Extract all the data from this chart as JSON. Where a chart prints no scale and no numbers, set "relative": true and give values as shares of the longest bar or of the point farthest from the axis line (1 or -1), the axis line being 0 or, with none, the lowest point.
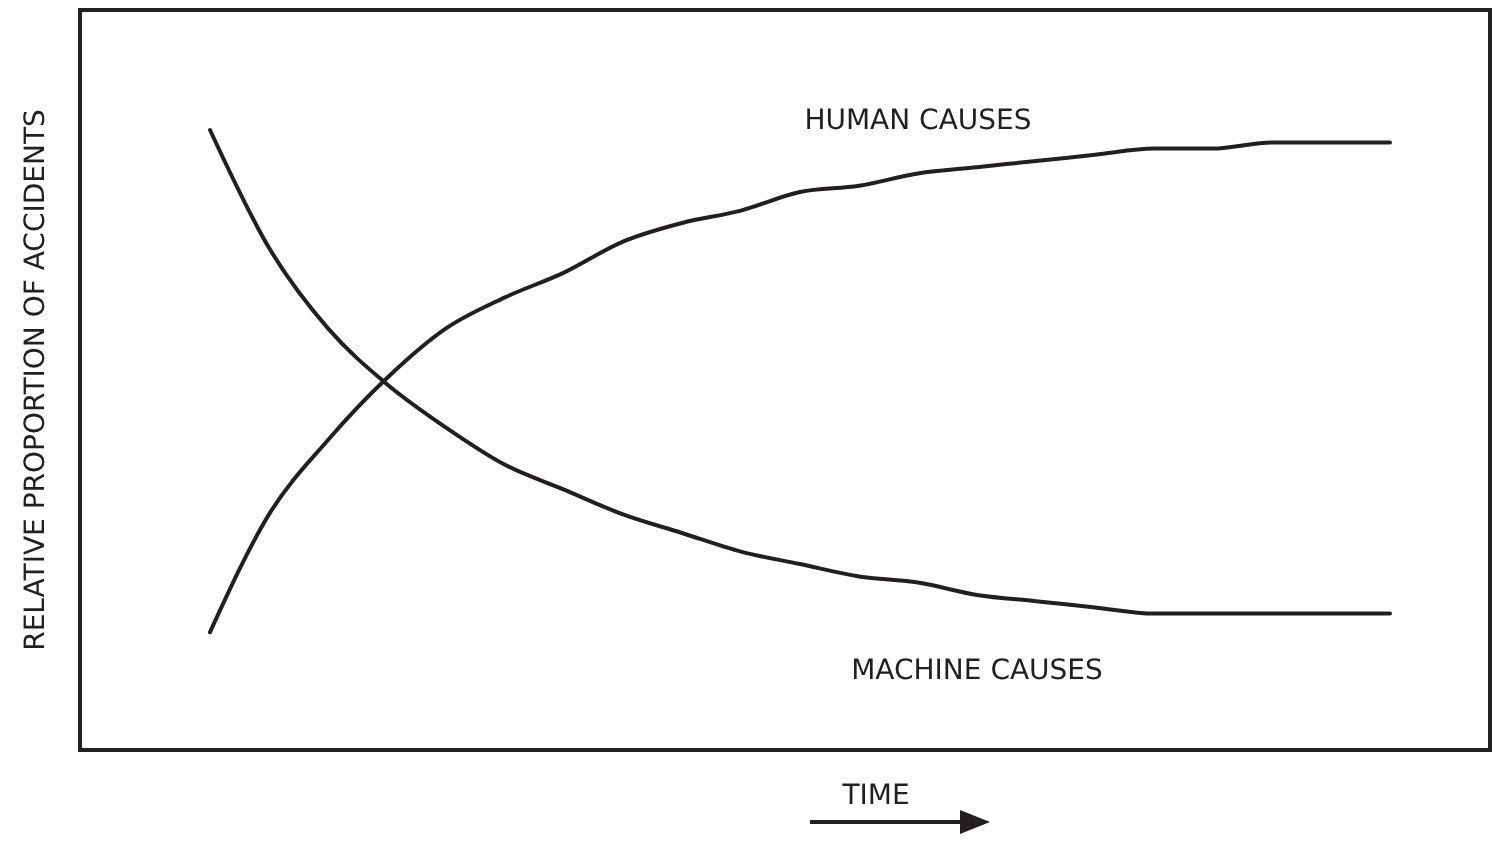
{
  "chart_data": {
    "type": "line",
    "relative": true,
    "xlabel": "TIME",
    "ylabel": "RELATIVE PROPORTION OF ACCIDENTS",
    "categories": [
      null,
      null,
      null,
      null,
      null,
      null,
      null,
      null,
      null,
      null,
      null,
      null,
      null,
      null,
      null,
      null,
      null,
      null,
      null,
      null,
      null
    ],
    "series": [
      {
        "name": "HUMAN CAUSES",
        "color": "#231f20",
        "values": [
          0.19,
          0.38,
          0.5,
          0.6,
          0.68,
          0.73,
          0.77,
          0.82,
          0.85,
          0.87,
          0.9,
          0.91,
          0.93,
          0.94,
          0.95,
          0.96,
          0.97,
          0.97,
          0.98,
          0.98,
          0.98
        ]
      },
      {
        "name": "MACHINE CAUSES",
        "color": "#231f20",
        "values": [
          1,
          0.81,
          0.68,
          0.59,
          0.52,
          0.46,
          0.42,
          0.38,
          0.35,
          0.32,
          0.3,
          0.28,
          0.27,
          0.25,
          0.24,
          0.23,
          0.22,
          0.22,
          0.22,
          0.22,
          0.22
        ]
      }
    ]
  }
}
